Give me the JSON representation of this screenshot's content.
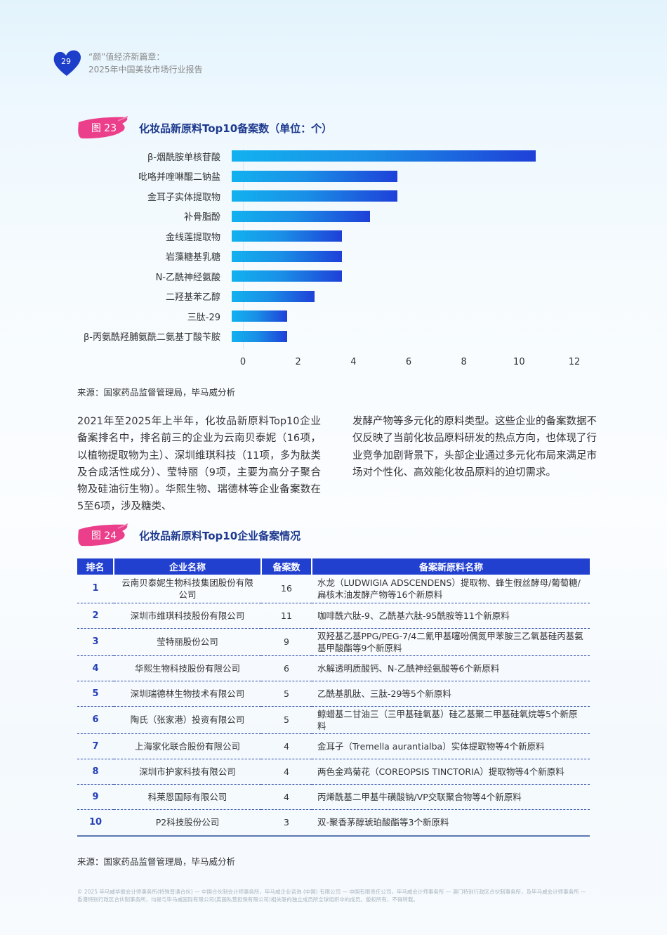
{
  "header": {
    "page_number": "29",
    "title_line1": "“颜”值经济新篇章：",
    "title_line2": "2025年中国美妆市场行业报告"
  },
  "figure23": {
    "badge": "图 23",
    "title": "化妆品新原料Top10备案数（单位：个）",
    "source": "来源：国家药品监督管理局，毕马威分析"
  },
  "chart_data": {
    "type": "bar",
    "orientation": "horizontal",
    "title": "化妆品新原料Top10备案数（单位：个）",
    "categories": [
      "β-烟酰胺单核苷酸",
      "吡咯并喹啉醌二钠盐",
      "金耳子实体提取物",
      "补骨脂酚",
      "金线莲提取物",
      "岩藻糖基乳糖",
      "N-乙酰神经氨酸",
      "二羟基苯乙醇",
      "三肽-29",
      "β-丙氨酰羟脯氨酰二氨基丁酸苄胺"
    ],
    "values": [
      11,
      6,
      6,
      5,
      4,
      4,
      4,
      3,
      2,
      2
    ],
    "xlabel": "",
    "ylabel": "",
    "xlim": [
      0,
      12
    ],
    "ticks": [
      "0",
      "2",
      "4",
      "6",
      "8",
      "10",
      "12"
    ],
    "grid": false,
    "legend": "none",
    "bar_gradient": [
      "#12b1ef",
      "#1e40d8"
    ]
  },
  "paragraph": {
    "left": "2021年至2025年上半年，化妆品新原料Top10企业备案排名中，排名前三的企业为云南贝泰妮（16项，以植物提取物为主）、深圳维琪科技（11项，多为肽类及合成活性成分）、莹特丽（9项，主要为高分子聚合物及硅油衍生物）。华熙生物、瑞德林等企业备案数在5至6项，涉及糖类、",
    "right": "发酵产物等多元化的原料类型。这些企业的备案数据不仅反映了当前化妆品原料研发的热点方向，也体现了行业竞争加剧背景下，头部企业通过多元化布局来满足市场对个性化、高效能化妆品原料的迫切需求。"
  },
  "figure24": {
    "badge": "图 24",
    "title": "化妆品新原料Top10企业备案情况",
    "source": "来源：国家药品监督管理局，毕马威分析",
    "columns": [
      "排名",
      "企业名称",
      "备案数",
      "备案新原料名称"
    ],
    "rows": [
      {
        "rank": "1",
        "company": "云南贝泰妮生物科技集团股份有限公司",
        "count": "16",
        "materials": "水龙（LUDWIGIA ADSCENDENS）提取物、蜂生假丝酵母/葡萄糖/扁核木油发酵产物等16个新原料"
      },
      {
        "rank": "2",
        "company": "深圳市维琪科技股份有限公司",
        "count": "11",
        "materials": "咖啡酰六肽-9、乙酰基六肽-95酰胺等11个新原料"
      },
      {
        "rank": "3",
        "company": "莹特丽股份公司",
        "count": "9",
        "materials": "双羟基乙基PPG/PEG-7/4二氰甲基噻吩偶氮甲苯胺三乙氧基硅丙基氨基甲酸酯等9个新原料"
      },
      {
        "rank": "4",
        "company": "华熙生物科技股份有限公司",
        "count": "6",
        "materials": "水解透明质酸钙、N-乙酰神经氨酸等6个新原料"
      },
      {
        "rank": "5",
        "company": "深圳瑞德林生物技术有限公司",
        "count": "5",
        "materials": "乙酰基肌肽、三肽-29等5个新原料"
      },
      {
        "rank": "6",
        "company": "陶氏（张家港）投资有限公司",
        "count": "5",
        "materials": "鲸蜡基二甘油三（三甲基硅氧基）硅乙基聚二甲基硅氧烷等5个新原料"
      },
      {
        "rank": "7",
        "company": "上海家化联合股份有限公司",
        "count": "4",
        "materials": "金耳子（Tremella aurantialba）实体提取物等4个新原料"
      },
      {
        "rank": "8",
        "company": "深圳市护家科技有限公司",
        "count": "4",
        "materials": "两色金鸡菊花（COREOPSIS TINCTORIA）提取物等4个新原料"
      },
      {
        "rank": "9",
        "company": "科莱恩国际有限公司",
        "count": "4",
        "materials": "丙烯酰基二甲基牛磺酸钠/VP交联聚合物等4个新原料"
      },
      {
        "rank": "10",
        "company": "P2科技股份公司",
        "count": "3",
        "materials": "双-聚香茅醇琥珀酸酯等3个新原料"
      }
    ]
  },
  "footer": {
    "copyright": "© 2025 毕马威华振会计师事务所(特殊普通合伙) — 中国合伙制会计师事务所，毕马威企业咨询 (中国) 有限公司 — 中国有限责任公司，毕马威会计师事务所 — 澳门特别行政区合伙制事务所，及毕马威会计师事务所 — 香港特别行政区合伙制事务所，均是与毕马威国际有限公司(英国私营担保有限公司)相关联的独立成员所全球组织中的成员。版权所有，不得转载。"
  }
}
